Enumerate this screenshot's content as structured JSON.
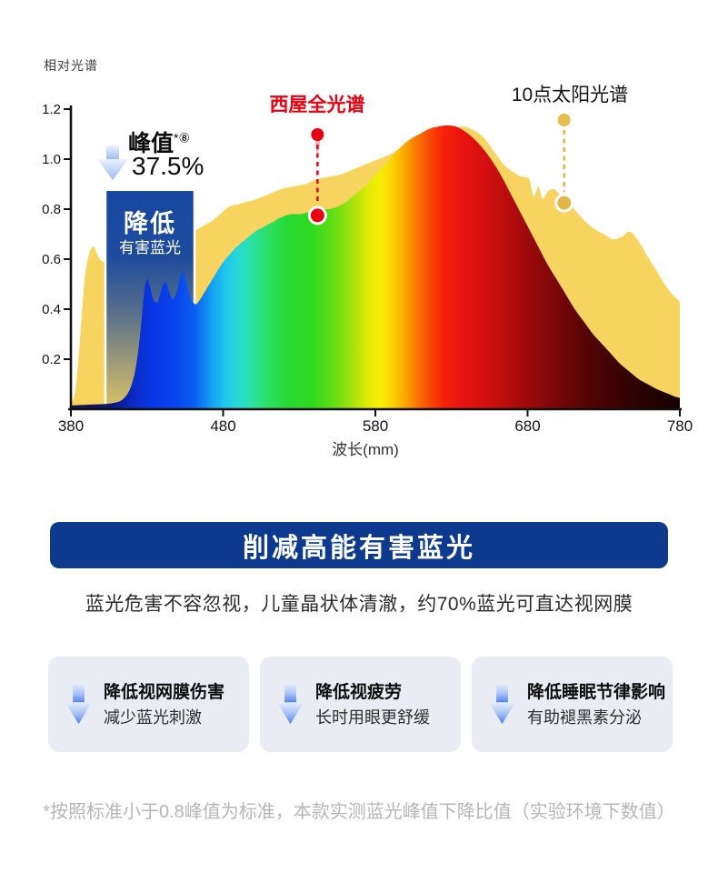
{
  "colors": {
    "banner_bg": "#0d3a8e",
    "card_bg": "#e9ecf2",
    "red_accent": "#e60012",
    "gold_accent": "#e2b84a",
    "sun_fill": "#f7d35f",
    "overlay_blue": "#17479e",
    "arrow_blue": "#4d7fe9",
    "footnote_gray": "#b6b6b6"
  },
  "chart": {
    "y_axis_title": "相对光谱",
    "x_axis_label": "波长(mm)",
    "peak_annotation": {
      "title": "峰值",
      "sup": "*⑧",
      "value": "37.5%"
    },
    "overlay_box": {
      "title": "降低",
      "subtitle": "有害蓝光",
      "color": "#17479e"
    }
  },
  "chart_data": {
    "type": "area",
    "title": "",
    "xlabel": "波长(mm)",
    "ylabel": "相对光谱",
    "xlim": [
      380,
      780
    ],
    "ylim": [
      0,
      1.2
    ],
    "x_ticks": [
      380,
      480,
      580,
      680,
      780
    ],
    "y_ticks": [
      0.2,
      0.4,
      0.6,
      0.8,
      1.0,
      1.2
    ],
    "grid": false,
    "legend_position": "callout-labels-above-curves",
    "series": [
      {
        "name": "10点太阳光谱",
        "color": "#f7d35f",
        "points": [
          [
            380,
            0.02
          ],
          [
            383,
            0.08
          ],
          [
            386,
            0.28
          ],
          [
            389,
            0.52
          ],
          [
            392,
            0.62
          ],
          [
            395,
            0.65
          ],
          [
            398,
            0.61
          ],
          [
            401,
            0.59
          ],
          [
            405,
            0.6
          ],
          [
            410,
            0.62
          ],
          [
            416,
            0.63
          ],
          [
            424,
            0.64
          ],
          [
            432,
            0.65
          ],
          [
            440,
            0.67
          ],
          [
            448,
            0.7
          ],
          [
            454,
            0.71
          ],
          [
            460,
            0.71
          ],
          [
            466,
            0.73
          ],
          [
            472,
            0.75
          ],
          [
            478,
            0.78
          ],
          [
            484,
            0.81
          ],
          [
            490,
            0.82
          ],
          [
            496,
            0.83
          ],
          [
            502,
            0.84
          ],
          [
            510,
            0.86
          ],
          [
            518,
            0.88
          ],
          [
            526,
            0.89
          ],
          [
            534,
            0.9
          ],
          [
            542,
            0.92
          ],
          [
            550,
            0.93
          ],
          [
            558,
            0.94
          ],
          [
            566,
            0.96
          ],
          [
            574,
            0.98
          ],
          [
            582,
            1.0
          ],
          [
            590,
            1.02
          ],
          [
            598,
            1.05
          ],
          [
            606,
            1.07
          ],
          [
            614,
            1.09
          ],
          [
            622,
            1.11
          ],
          [
            630,
            1.12
          ],
          [
            638,
            1.13
          ],
          [
            646,
            1.11
          ],
          [
            652,
            1.08
          ],
          [
            658,
            1.03
          ],
          [
            664,
            0.98
          ],
          [
            670,
            0.95
          ],
          [
            676,
            0.93
          ],
          [
            681,
            0.92
          ],
          [
            684,
            0.85
          ],
          [
            687,
            0.89
          ],
          [
            690,
            0.84
          ],
          [
            693,
            0.87
          ],
          [
            697,
            0.88
          ],
          [
            701,
            0.86
          ],
          [
            706,
            0.83
          ],
          [
            712,
            0.79
          ],
          [
            718,
            0.75
          ],
          [
            724,
            0.72
          ],
          [
            730,
            0.7
          ],
          [
            736,
            0.68
          ],
          [
            742,
            0.69
          ],
          [
            747,
            0.71
          ],
          [
            752,
            0.68
          ],
          [
            758,
            0.62
          ],
          [
            764,
            0.56
          ],
          [
            770,
            0.5
          ],
          [
            775,
            0.46
          ],
          [
            780,
            0.43
          ]
        ]
      },
      {
        "name": "西屋全光谱",
        "fill": "rainbow-spectrum-gradient",
        "gradient_stops": [
          [
            380,
            "#131345"
          ],
          [
            405,
            "#0c1670"
          ],
          [
            415,
            "#0a22a8"
          ],
          [
            425,
            "#0a30d0"
          ],
          [
            435,
            "#0838e8"
          ],
          [
            450,
            "#0946ee"
          ],
          [
            462,
            "#0a62f0"
          ],
          [
            472,
            "#149ef2"
          ],
          [
            482,
            "#1fc8ee"
          ],
          [
            492,
            "#27ddcc"
          ],
          [
            500,
            "#2ae09e"
          ],
          [
            510,
            "#2cde62"
          ],
          [
            522,
            "#27da34"
          ],
          [
            538,
            "#2fd91e"
          ],
          [
            552,
            "#5fdd14"
          ],
          [
            565,
            "#a5e30c"
          ],
          [
            575,
            "#dfea06"
          ],
          [
            583,
            "#f8ee04"
          ],
          [
            592,
            "#fbcf03"
          ],
          [
            600,
            "#fba201"
          ],
          [
            608,
            "#fb7202"
          ],
          [
            616,
            "#f84806"
          ],
          [
            624,
            "#f52408"
          ],
          [
            636,
            "#ea1310"
          ],
          [
            650,
            "#d81011"
          ],
          [
            665,
            "#bc0d0e"
          ],
          [
            680,
            "#9d090b"
          ],
          [
            700,
            "#770608"
          ],
          [
            720,
            "#540405"
          ],
          [
            745,
            "#330203"
          ],
          [
            780,
            "#150101"
          ]
        ],
        "points": [
          [
            380,
            0.015
          ],
          [
            390,
            0.018
          ],
          [
            400,
            0.02
          ],
          [
            408,
            0.025
          ],
          [
            413,
            0.035
          ],
          [
            417,
            0.06
          ],
          [
            420,
            0.1
          ],
          [
            423,
            0.18
          ],
          [
            426,
            0.33
          ],
          [
            428,
            0.46
          ],
          [
            430,
            0.52
          ],
          [
            432,
            0.49
          ],
          [
            434,
            0.44
          ],
          [
            437,
            0.43
          ],
          [
            440,
            0.49
          ],
          [
            442,
            0.51
          ],
          [
            444,
            0.48
          ],
          [
            447,
            0.44
          ],
          [
            450,
            0.48
          ],
          [
            452,
            0.53
          ],
          [
            454,
            0.55
          ],
          [
            456,
            0.5
          ],
          [
            459,
            0.44
          ],
          [
            462,
            0.42
          ],
          [
            465,
            0.44
          ],
          [
            469,
            0.48
          ],
          [
            473,
            0.52
          ],
          [
            478,
            0.57
          ],
          [
            483,
            0.61
          ],
          [
            489,
            0.65
          ],
          [
            495,
            0.68
          ],
          [
            501,
            0.71
          ],
          [
            507,
            0.73
          ],
          [
            513,
            0.75
          ],
          [
            519,
            0.77
          ],
          [
            525,
            0.78
          ],
          [
            531,
            0.78
          ],
          [
            537,
            0.79
          ],
          [
            543,
            0.8
          ],
          [
            549,
            0.8
          ],
          [
            555,
            0.81
          ],
          [
            561,
            0.83
          ],
          [
            567,
            0.86
          ],
          [
            573,
            0.89
          ],
          [
            579,
            0.93
          ],
          [
            585,
            0.97
          ],
          [
            591,
            1.01
          ],
          [
            597,
            1.05
          ],
          [
            603,
            1.08
          ],
          [
            609,
            1.1
          ],
          [
            615,
            1.12
          ],
          [
            621,
            1.13
          ],
          [
            627,
            1.135
          ],
          [
            633,
            1.13
          ],
          [
            639,
            1.11
          ],
          [
            645,
            1.08
          ],
          [
            651,
            1.04
          ],
          [
            657,
            0.99
          ],
          [
            663,
            0.93
          ],
          [
            669,
            0.86
          ],
          [
            675,
            0.79
          ],
          [
            681,
            0.72
          ],
          [
            687,
            0.65
          ],
          [
            693,
            0.58
          ],
          [
            699,
            0.52
          ],
          [
            705,
            0.46
          ],
          [
            711,
            0.4
          ],
          [
            717,
            0.35
          ],
          [
            723,
            0.3
          ],
          [
            729,
            0.26
          ],
          [
            735,
            0.22
          ],
          [
            741,
            0.18
          ],
          [
            747,
            0.15
          ],
          [
            753,
            0.12
          ],
          [
            759,
            0.1
          ],
          [
            765,
            0.08
          ],
          [
            771,
            0.065
          ],
          [
            777,
            0.05
          ],
          [
            780,
            0.045
          ]
        ]
      }
    ],
    "callouts": [
      {
        "series": "西屋全光谱",
        "wavelength": 542,
        "value": 0.775,
        "line_color": "#e60012",
        "dot_color": "#e60012",
        "ring_fill": "#e60012"
      },
      {
        "series": "10点太阳光谱",
        "wavelength": 704,
        "value": 0.825,
        "line_color": "#dfb54a",
        "dot_color": "#e6bd4f",
        "ring_fill": "#e2b84a"
      }
    ]
  },
  "banner": {
    "title": "削减高能有害蓝光"
  },
  "intro": {
    "text": "蓝光危害不容忽视，儿童晶状体清澈，约70%蓝光可直达视网膜"
  },
  "benefit_cards": [
    {
      "title": "降低视网膜伤害",
      "subtitle": "减少蓝光刺激"
    },
    {
      "title": "降低视疲劳",
      "subtitle": "长时用眼更舒缓"
    },
    {
      "title": "降低睡眠节律影响",
      "subtitle": "有助褪黑素分泌"
    }
  ],
  "footnote": {
    "text": "*按照标准小于0.8峰值为标准，本款实测蓝光峰值下降比值（实验环境下数值）"
  }
}
